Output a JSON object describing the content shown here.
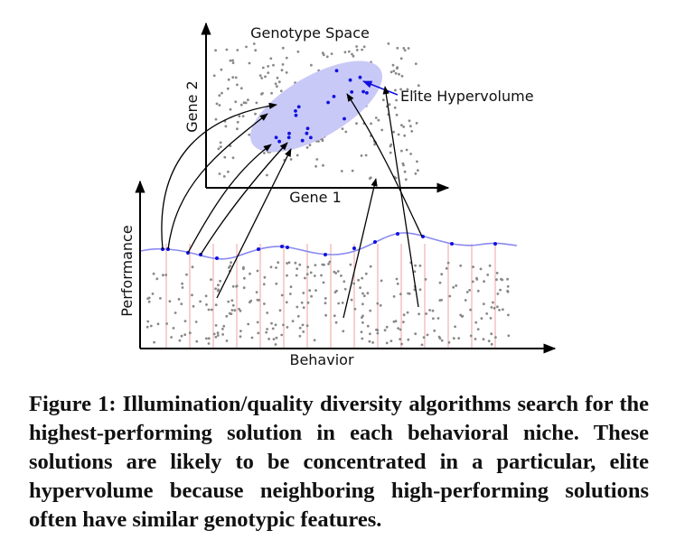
{
  "figure": {
    "genotype_space_label": "Genotype Space",
    "gene1_label": "Gene 1",
    "gene2_label": "Gene 2",
    "elite_label": "Elite Hypervolume",
    "performance_label": "Performance",
    "behavior_label": "Behavior",
    "colors": {
      "ellipse_fill": "#c9c9f7",
      "elite_dot": "#1010e0",
      "grey_dot": "#888888",
      "curve": "#8a8af0",
      "niche_line": "#f0a0a0",
      "axis": "#000000"
    }
  },
  "caption": {
    "prefix": "Figure 1:",
    "text": "Illumination/quality diversity algorithms search for the highest-performing solution in each behavioral niche. These solutions are likely to be concentrated in a particular, elite hypervolume because neighboring high-performing solutions often have similar genotypic features."
  }
}
